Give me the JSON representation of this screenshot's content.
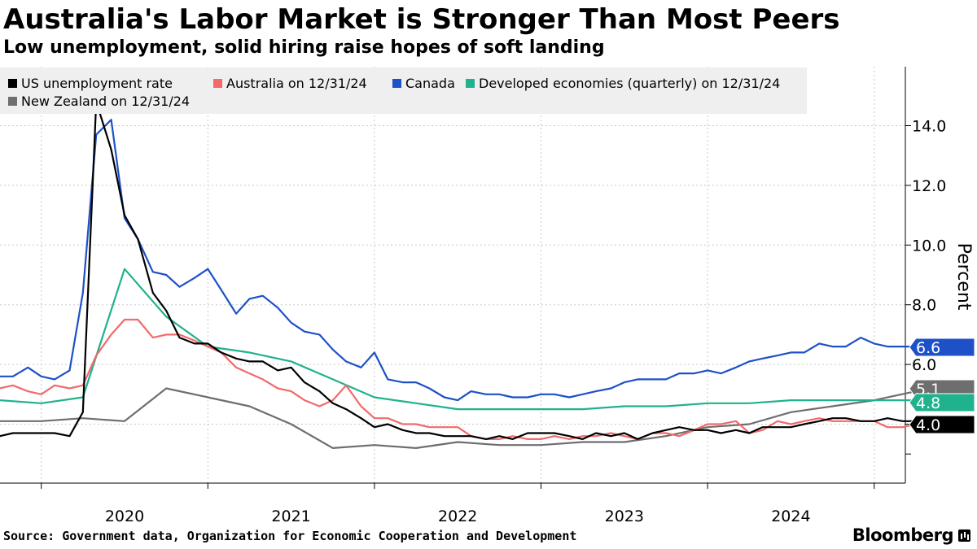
{
  "header": {
    "title": "Australia's Labor Market is Stronger Than Most Peers",
    "subtitle": "Low unemployment, solid hiring raise hopes of soft landing"
  },
  "footer": {
    "source": "Source: Government data, Organization for Economic Cooperation and Development",
    "brand": "Bloomberg"
  },
  "chart_data": {
    "type": "line",
    "title": "Australia's Labor Market is Stronger Than Most Peers",
    "ylabel": "Percent",
    "xlabel": "",
    "xlim": [
      2019.25,
      2024.85
    ],
    "ylim": [
      2.5,
      15.5
    ],
    "yticks": [
      4.0,
      6.0,
      8.0,
      10.0,
      12.0,
      14.0
    ],
    "ytick_labels": [
      "4.0",
      "6.0",
      "8.0",
      "10.0",
      "12.0",
      "14.0"
    ],
    "xticks": [
      2020,
      2021,
      2022,
      2023,
      2024
    ],
    "xtick_labels": [
      "2020",
      "2021",
      "2022",
      "2023",
      "2024"
    ],
    "legend_position": "top-left",
    "series": [
      {
        "name": "US unemployment rate",
        "color": "#000000",
        "x": [
          2019.25,
          2019.33,
          2019.42,
          2019.5,
          2019.58,
          2019.67,
          2019.75,
          2019.83,
          2019.92,
          2020.0,
          2020.08,
          2020.17,
          2020.25,
          2020.33,
          2020.42,
          2020.5,
          2020.58,
          2020.67,
          2020.75,
          2020.83,
          2020.92,
          2021.0,
          2021.08,
          2021.17,
          2021.25,
          2021.33,
          2021.42,
          2021.5,
          2021.58,
          2021.67,
          2021.75,
          2021.83,
          2021.92,
          2022.0,
          2022.08,
          2022.17,
          2022.25,
          2022.33,
          2022.42,
          2022.5,
          2022.58,
          2022.67,
          2022.75,
          2022.83,
          2022.92,
          2023.0,
          2023.08,
          2023.17,
          2023.25,
          2023.33,
          2023.42,
          2023.5,
          2023.58,
          2023.67,
          2023.75,
          2023.83,
          2023.92,
          2024.0,
          2024.08,
          2024.17,
          2024.25,
          2024.33,
          2024.42,
          2024.5,
          2024.58,
          2024.67,
          2024.75,
          2024.83
        ],
        "values": [
          3.6,
          3.7,
          3.7,
          3.7,
          3.7,
          3.6,
          4.4,
          14.8,
          13.2,
          11.0,
          10.2,
          8.4,
          7.8,
          6.9,
          6.7,
          6.7,
          6.4,
          6.2,
          6.1,
          6.1,
          5.8,
          5.9,
          5.4,
          5.1,
          4.7,
          4.5,
          4.2,
          3.9,
          4.0,
          3.8,
          3.7,
          3.7,
          3.6,
          3.6,
          3.6,
          3.5,
          3.6,
          3.5,
          3.7,
          3.7,
          3.7,
          3.6,
          3.5,
          3.7,
          3.6,
          3.7,
          3.5,
          3.7,
          3.8,
          3.9,
          3.8,
          3.8,
          3.7,
          3.8,
          3.7,
          3.9,
          3.9,
          3.9,
          4.0,
          4.1,
          4.2,
          4.2,
          4.1,
          4.1,
          4.2,
          4.1,
          4.1,
          4.0
        ]
      },
      {
        "name": "Australia on 12/31/24",
        "color": "#f26a6a",
        "x": [
          2019.25,
          2019.33,
          2019.42,
          2019.5,
          2019.58,
          2019.67,
          2019.75,
          2019.83,
          2019.92,
          2020.0,
          2020.08,
          2020.17,
          2020.25,
          2020.33,
          2020.42,
          2020.5,
          2020.58,
          2020.67,
          2020.75,
          2020.83,
          2020.92,
          2021.0,
          2021.08,
          2021.17,
          2021.25,
          2021.33,
          2021.42,
          2021.5,
          2021.58,
          2021.67,
          2021.75,
          2021.83,
          2021.92,
          2022.0,
          2022.08,
          2022.17,
          2022.25,
          2022.33,
          2022.42,
          2022.5,
          2022.58,
          2022.67,
          2022.75,
          2022.83,
          2022.92,
          2023.0,
          2023.08,
          2023.17,
          2023.25,
          2023.33,
          2023.42,
          2023.5,
          2023.58,
          2023.67,
          2023.75,
          2023.83,
          2023.92,
          2024.0,
          2024.08,
          2024.17,
          2024.25,
          2024.33,
          2024.42,
          2024.5,
          2024.58,
          2024.67,
          2024.75,
          2024.83
        ],
        "values": [
          5.2,
          5.3,
          5.1,
          5.0,
          5.3,
          5.2,
          5.3,
          6.3,
          7.0,
          7.5,
          7.5,
          6.9,
          7.0,
          7.0,
          6.8,
          6.6,
          6.4,
          5.9,
          5.7,
          5.5,
          5.2,
          5.1,
          4.8,
          4.6,
          4.8,
          5.3,
          4.6,
          4.2,
          4.2,
          4.0,
          4.0,
          3.9,
          3.9,
          3.9,
          3.6,
          3.5,
          3.5,
          3.6,
          3.5,
          3.5,
          3.6,
          3.5,
          3.6,
          3.6,
          3.7,
          3.6,
          3.5,
          3.7,
          3.7,
          3.6,
          3.8,
          4.0,
          4.0,
          4.1,
          3.7,
          3.8,
          4.1,
          4.0,
          4.1,
          4.2,
          4.1,
          4.1,
          4.1,
          4.1,
          3.9,
          3.9,
          4.0,
          4.0
        ]
      },
      {
        "name": "Canada",
        "color": "#1e50c8",
        "x": [
          2019.25,
          2019.33,
          2019.42,
          2019.5,
          2019.58,
          2019.67,
          2019.75,
          2019.83,
          2019.92,
          2020.0,
          2020.08,
          2020.17,
          2020.25,
          2020.33,
          2020.42,
          2020.5,
          2020.58,
          2020.67,
          2020.75,
          2020.83,
          2020.92,
          2021.0,
          2021.08,
          2021.17,
          2021.25,
          2021.33,
          2021.42,
          2021.5,
          2021.58,
          2021.67,
          2021.75,
          2021.83,
          2021.92,
          2022.0,
          2022.08,
          2022.17,
          2022.25,
          2022.33,
          2022.42,
          2022.5,
          2022.58,
          2022.67,
          2022.75,
          2022.83,
          2022.92,
          2023.0,
          2023.08,
          2023.17,
          2023.25,
          2023.33,
          2023.42,
          2023.5,
          2023.58,
          2023.67,
          2023.75,
          2023.83,
          2023.92,
          2024.0,
          2024.08,
          2024.17,
          2024.25,
          2024.33,
          2024.42,
          2024.5,
          2024.58,
          2024.67,
          2024.75,
          2024.83
        ],
        "values": [
          5.6,
          5.6,
          5.9,
          5.6,
          5.5,
          5.8,
          8.4,
          13.7,
          14.2,
          10.9,
          10.2,
          9.1,
          9.0,
          8.6,
          8.9,
          9.2,
          8.5,
          7.7,
          8.2,
          8.3,
          7.9,
          7.4,
          7.1,
          7.0,
          6.5,
          6.1,
          5.9,
          6.4,
          5.5,
          5.4,
          5.4,
          5.2,
          4.9,
          4.8,
          5.1,
          5.0,
          5.0,
          4.9,
          4.9,
          5.0,
          5.0,
          4.9,
          5.0,
          5.1,
          5.2,
          5.4,
          5.5,
          5.5,
          5.5,
          5.7,
          5.7,
          5.8,
          5.7,
          5.9,
          6.1,
          6.2,
          6.3,
          6.4,
          6.4,
          6.7,
          6.6,
          6.6,
          6.9,
          6.7,
          6.6,
          6.6,
          6.6,
          6.6
        ]
      },
      {
        "name": "Developed economies (quarterly) on 12/31/24",
        "color": "#1fb28c",
        "x": [
          2019.25,
          2019.5,
          2019.75,
          2020.0,
          2020.25,
          2020.5,
          2020.75,
          2021.0,
          2021.25,
          2021.5,
          2021.75,
          2022.0,
          2022.25,
          2022.5,
          2022.75,
          2023.0,
          2023.25,
          2023.5,
          2023.75,
          2024.0,
          2024.25,
          2024.5,
          2024.75
        ],
        "values": [
          4.8,
          4.7,
          4.9,
          9.2,
          7.6,
          6.6,
          6.4,
          6.1,
          5.5,
          4.9,
          4.7,
          4.5,
          4.5,
          4.5,
          4.5,
          4.6,
          4.6,
          4.7,
          4.7,
          4.8,
          4.8,
          4.8,
          4.8
        ]
      },
      {
        "name": "New Zealand on 12/31/24",
        "color": "#6e6e6e",
        "x": [
          2019.25,
          2019.5,
          2019.75,
          2020.0,
          2020.25,
          2020.5,
          2020.75,
          2021.0,
          2021.25,
          2021.5,
          2021.75,
          2022.0,
          2022.25,
          2022.5,
          2022.75,
          2023.0,
          2023.25,
          2023.5,
          2023.75,
          2024.0,
          2024.25,
          2024.5,
          2024.75
        ],
        "values": [
          4.1,
          4.1,
          4.2,
          4.1,
          5.2,
          4.9,
          4.6,
          4.0,
          3.2,
          3.3,
          3.2,
          3.4,
          3.3,
          3.3,
          3.4,
          3.4,
          3.6,
          3.9,
          4.0,
          4.4,
          4.6,
          4.8,
          5.1
        ]
      }
    ],
    "end_labels": [
      {
        "series": "Canada",
        "text": "6.6",
        "value": 6.6,
        "bg": "#1e50c8",
        "fg": "#ffffff"
      },
      {
        "series": "New Zealand on 12/31/24",
        "text": "5.1",
        "value": 5.1,
        "bg": "#6e6e6e",
        "fg": "#ffffff"
      },
      {
        "series": "Developed economies (quarterly) on 12/31/24",
        "text": "4.8",
        "value": 4.8,
        "bg": "#1fb28c",
        "fg": "#ffffff"
      },
      {
        "series": "US unemployment rate",
        "text": "4.0",
        "value": 4.0,
        "bg": "#000000",
        "fg": "#ffffff"
      }
    ]
  }
}
